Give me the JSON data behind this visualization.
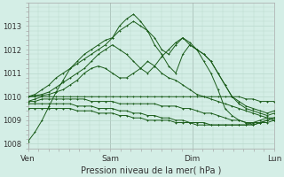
{
  "title": "",
  "xlabel": "Pression niveau de la mer( hPa )",
  "background_color": "#d4eee6",
  "grid_color": "#b8d8cc",
  "line_color": "#1a5c1a",
  "marker": "+",
  "ylim": [
    1007.8,
    1013.8
  ],
  "yticks": [
    1008,
    1009,
    1010,
    1011,
    1012,
    1013
  ],
  "x_ticks_pos": [
    0,
    48,
    96,
    144
  ],
  "x_tick_labels": [
    "Ven",
    "Sam",
    "Dim",
    "Lun"
  ],
  "xlim": [
    0,
    144
  ],
  "lines": [
    [
      1008.1,
      1008.5,
      1009.0,
      1009.6,
      1010.2,
      1010.7,
      1011.2,
      1011.5,
      1011.8,
      1012.0,
      1012.2,
      1012.4,
      1012.5,
      1013.0,
      1013.3,
      1013.5,
      1013.2,
      1012.8,
      1012.2,
      1011.8,
      1011.3,
      1011.0,
      1011.8,
      1012.2,
      1012.0,
      1011.5,
      1011.0,
      1010.3,
      1009.5,
      1009.2,
      1009.0,
      1008.9,
      1008.8,
      1008.9,
      1009.0,
      1009.1
    ],
    [
      1010.0,
      1010.1,
      1010.3,
      1010.5,
      1010.8,
      1011.0,
      1011.2,
      1011.4,
      1011.6,
      1011.8,
      1012.0,
      1012.2,
      1012.5,
      1012.8,
      1013.0,
      1013.2,
      1013.0,
      1012.8,
      1012.5,
      1012.0,
      1011.8,
      1012.2,
      1012.5,
      1012.3,
      1012.0,
      1011.8,
      1011.5,
      1011.0,
      1010.5,
      1010.0,
      1009.7,
      1009.5,
      1009.4,
      1009.3,
      1009.2,
      1009.3
    ],
    [
      1010.0,
      1010.05,
      1010.1,
      1010.2,
      1010.4,
      1010.6,
      1010.8,
      1011.0,
      1011.2,
      1011.5,
      1011.8,
      1012.0,
      1012.2,
      1012.0,
      1011.8,
      1011.5,
      1011.2,
      1011.0,
      1011.3,
      1011.7,
      1012.0,
      1012.3,
      1012.5,
      1012.2,
      1012.0,
      1011.8,
      1011.5,
      1011.0,
      1010.5,
      1010.0,
      1009.8,
      1009.6,
      1009.5,
      1009.4,
      1009.3,
      1009.4
    ],
    [
      1010.0,
      1010.0,
      1010.05,
      1010.1,
      1010.2,
      1010.3,
      1010.5,
      1010.7,
      1011.0,
      1011.2,
      1011.3,
      1011.2,
      1011.0,
      1010.8,
      1010.8,
      1011.0,
      1011.2,
      1011.5,
      1011.3,
      1011.0,
      1010.8,
      1010.7,
      1010.5,
      1010.3,
      1010.1,
      1010.0,
      1009.9,
      1009.8,
      1009.7,
      1009.6,
      1009.5,
      1009.4,
      1009.3,
      1009.2,
      1009.1,
      1009.0
    ],
    [
      1009.8,
      1009.9,
      1010.0,
      1010.0,
      1010.0,
      1010.0,
      1010.0,
      1010.0,
      1010.0,
      1010.0,
      1010.0,
      1010.0,
      1010.0,
      1010.0,
      1010.0,
      1010.0,
      1010.0,
      1010.0,
      1010.0,
      1010.0,
      1010.0,
      1010.0,
      1010.0,
      1010.0,
      1010.0,
      1010.0,
      1010.0,
      1010.0,
      1010.0,
      1010.0,
      1010.0,
      1009.9,
      1009.9,
      1009.8,
      1009.8,
      1009.8
    ],
    [
      1009.8,
      1009.8,
      1009.9,
      1009.9,
      1009.9,
      1009.9,
      1009.9,
      1009.9,
      1009.9,
      1009.8,
      1009.8,
      1009.8,
      1009.8,
      1009.7,
      1009.7,
      1009.7,
      1009.7,
      1009.7,
      1009.7,
      1009.6,
      1009.6,
      1009.6,
      1009.5,
      1009.5,
      1009.4,
      1009.3,
      1009.3,
      1009.2,
      1009.1,
      1009.0,
      1009.0,
      1008.9,
      1008.9,
      1008.9,
      1008.9,
      1009.0
    ],
    [
      1009.7,
      1009.7,
      1009.7,
      1009.7,
      1009.7,
      1009.7,
      1009.7,
      1009.6,
      1009.6,
      1009.6,
      1009.5,
      1009.5,
      1009.5,
      1009.4,
      1009.4,
      1009.3,
      1009.3,
      1009.2,
      1009.2,
      1009.1,
      1009.1,
      1009.0,
      1009.0,
      1008.9,
      1008.9,
      1008.9,
      1008.8,
      1008.8,
      1008.8,
      1008.8,
      1008.8,
      1008.8,
      1008.8,
      1008.9,
      1009.0,
      1009.1
    ],
    [
      1009.5,
      1009.5,
      1009.5,
      1009.5,
      1009.5,
      1009.5,
      1009.5,
      1009.4,
      1009.4,
      1009.4,
      1009.3,
      1009.3,
      1009.3,
      1009.2,
      1009.2,
      1009.1,
      1009.1,
      1009.0,
      1009.0,
      1009.0,
      1009.0,
      1008.9,
      1008.9,
      1008.9,
      1008.8,
      1008.8,
      1008.8,
      1008.8,
      1008.8,
      1008.8,
      1008.8,
      1008.8,
      1008.9,
      1009.0,
      1009.1,
      1009.1
    ]
  ]
}
